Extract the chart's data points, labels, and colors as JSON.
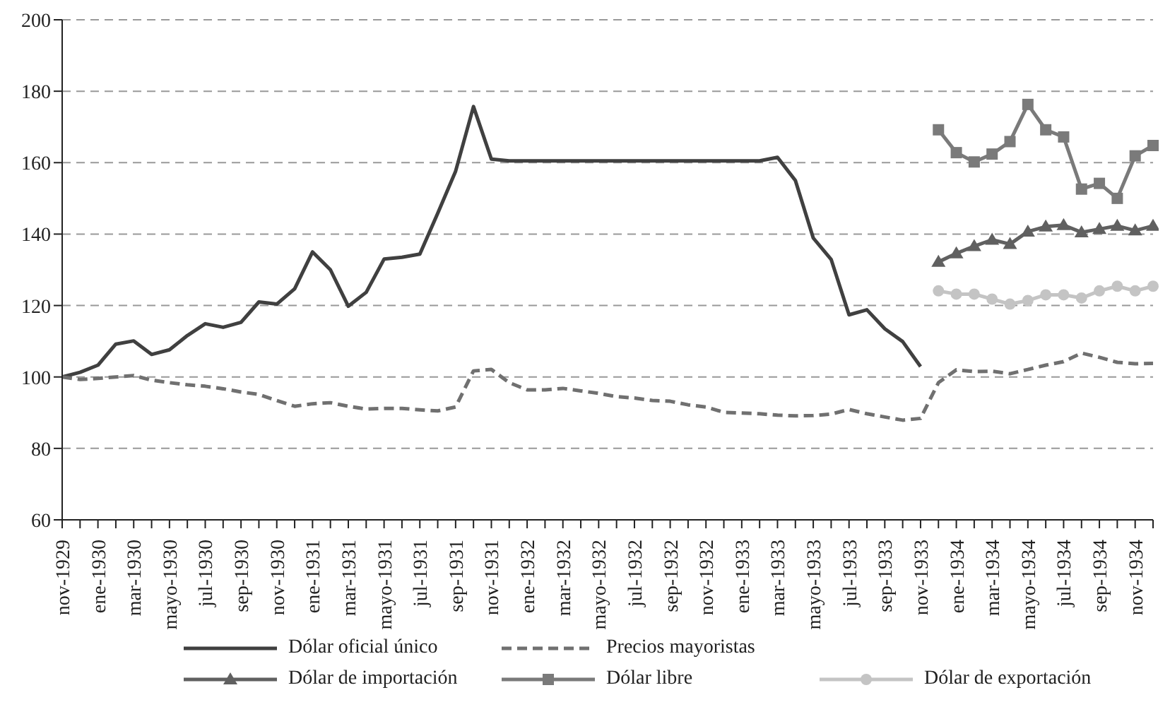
{
  "chart_data": {
    "type": "line",
    "categories": [
      "nov-1929",
      null,
      "ene-1930",
      null,
      "mar-1930",
      null,
      "mayo-1930",
      null,
      "jul-1930",
      null,
      "sep-1930",
      null,
      "nov-1930",
      null,
      "ene-1931",
      null,
      "mar-1931",
      null,
      "mayo-1931",
      null,
      "jul-1931",
      null,
      "sep-1931",
      null,
      "nov-1931",
      null,
      "ene-1932",
      null,
      "mar-1932",
      null,
      "mayo-1932",
      null,
      "jul-1932",
      null,
      "sep-1932",
      null,
      "nov-1932",
      null,
      "ene-1933",
      null,
      "mar-1933",
      null,
      "mayo-1933",
      null,
      "jul-1933",
      null,
      "sep-1933",
      null,
      "nov-1933",
      null,
      "ene-1934",
      null,
      "mar-1934",
      null,
      "mayo-1934",
      null,
      "jul-1934",
      null,
      "sep-1934",
      null,
      "nov-1934",
      null
    ],
    "ylim": [
      60,
      200
    ],
    "yticks": [
      60,
      80,
      100,
      120,
      140,
      160,
      180,
      200
    ],
    "grid": "y",
    "legend": "bottom",
    "series": [
      {
        "name": "Dólar oficial único",
        "color": "#404040",
        "line_style": "solid",
        "marker": "none",
        "values": [
          100,
          101.3,
          103.3,
          109.2,
          110.1,
          106.3,
          107.6,
          111.6,
          114.9,
          113.9,
          115.3,
          121,
          120.4,
          124.7,
          135,
          130,
          119.8,
          123.7,
          133,
          133.5,
          134.4,
          145.8,
          157.6,
          175.7,
          161,
          160.5,
          160.5,
          160.5,
          160.5,
          160.5,
          160.5,
          160.5,
          160.5,
          160.5,
          160.5,
          160.5,
          160.5,
          160.5,
          160.5,
          160.5,
          161.5,
          155,
          138.9,
          132.9,
          117.4,
          118.8,
          113.5,
          109.9,
          102.9,
          null,
          null,
          null,
          null,
          null,
          null,
          null,
          null,
          null,
          null,
          null,
          null,
          null
        ]
      },
      {
        "name": "Precios mayoristas",
        "color": "#707070",
        "line_style": "dashed",
        "marker": "none",
        "values": [
          100,
          99.3,
          99.6,
          100,
          100.4,
          99.1,
          98.4,
          97.8,
          97.4,
          96.7,
          95.8,
          95.1,
          93.4,
          91.8,
          92.5,
          92.8,
          91.8,
          91,
          91.2,
          91.2,
          90.8,
          90.5,
          91.6,
          101.7,
          102.1,
          98.4,
          96.4,
          96.4,
          96.8,
          96.1,
          95.4,
          94.5,
          94.1,
          93.4,
          93.2,
          92.2,
          91.6,
          90.1,
          89.9,
          89.7,
          89.3,
          89.1,
          89.2,
          89.6,
          90.9,
          89.7,
          88.8,
          87.9,
          88.4,
          98.4,
          102,
          101.5,
          101.6,
          100.9,
          102.1,
          103.3,
          104.3,
          106.7,
          105.5,
          104.1,
          103.7,
          103.8
        ]
      },
      {
        "name": "Dólar de importación",
        "color": "#606060",
        "line_style": "solid",
        "marker": "triangle",
        "values": [
          null,
          null,
          null,
          null,
          null,
          null,
          null,
          null,
          null,
          null,
          null,
          null,
          null,
          null,
          null,
          null,
          null,
          null,
          null,
          null,
          null,
          null,
          null,
          null,
          null,
          null,
          null,
          null,
          null,
          null,
          null,
          null,
          null,
          null,
          null,
          null,
          null,
          null,
          null,
          null,
          null,
          null,
          null,
          null,
          null,
          null,
          null,
          null,
          null,
          132.2,
          134.6,
          136.6,
          138.4,
          137.2,
          140.7,
          142.1,
          142.5,
          140.5,
          141.4,
          142.3,
          141,
          142.3
        ]
      },
      {
        "name": "Dólar libre",
        "color": "#7a7a7a",
        "line_style": "solid",
        "marker": "square",
        "values": [
          null,
          null,
          null,
          null,
          null,
          null,
          null,
          null,
          null,
          null,
          null,
          null,
          null,
          null,
          null,
          null,
          null,
          null,
          null,
          null,
          null,
          null,
          null,
          null,
          null,
          null,
          null,
          null,
          null,
          null,
          null,
          null,
          null,
          null,
          null,
          null,
          null,
          null,
          null,
          null,
          null,
          null,
          null,
          null,
          null,
          null,
          null,
          null,
          null,
          169.2,
          162.8,
          160.2,
          162.4,
          165.9,
          176.3,
          169.2,
          167.2,
          152.6,
          154.2,
          150,
          161.9,
          164.8
        ]
      },
      {
        "name": "Dólar de exportación",
        "color": "#c4c4c4",
        "line_style": "solid",
        "marker": "circle",
        "values": [
          null,
          null,
          null,
          null,
          null,
          null,
          null,
          null,
          null,
          null,
          null,
          null,
          null,
          null,
          null,
          null,
          null,
          null,
          null,
          null,
          null,
          null,
          null,
          null,
          null,
          null,
          null,
          null,
          null,
          null,
          null,
          null,
          null,
          null,
          null,
          null,
          null,
          null,
          null,
          null,
          null,
          null,
          null,
          null,
          null,
          null,
          null,
          null,
          null,
          124.1,
          123.2,
          123.2,
          121.8,
          120.4,
          121.4,
          123,
          123,
          122.1,
          124.1,
          125.4,
          124.1,
          125.4
        ]
      }
    ]
  }
}
